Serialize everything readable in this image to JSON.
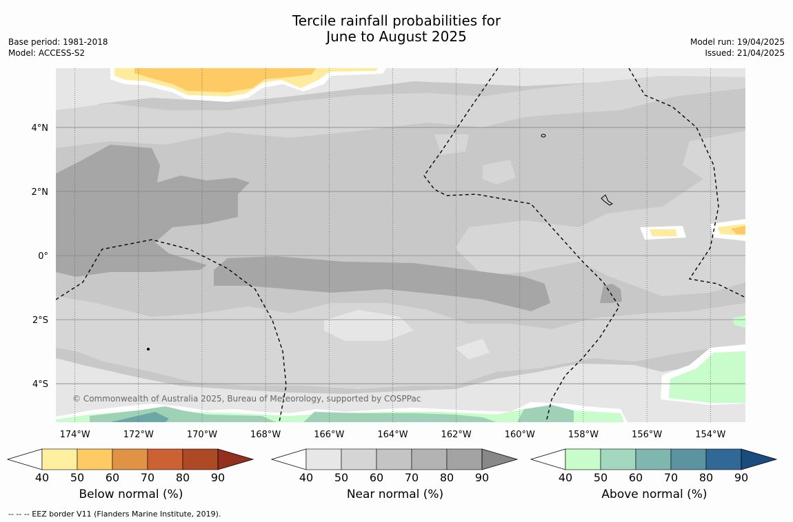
{
  "title": {
    "line1": "Tercile rainfall probabilities for",
    "line2": "June to August 2025"
  },
  "meta_left": {
    "base_period": "Base period: 1981-2018",
    "model": "Model: ACCESS-S2"
  },
  "meta_right": {
    "model_run": "Model run: 19/04/2025",
    "issued": "Issued: 21/04/2025"
  },
  "map": {
    "lon_range": [
      -174.6,
      -152.9
    ],
    "lat_range": [
      -5.2,
      5.85
    ],
    "lon_ticks": [
      "174°W",
      "172°W",
      "170°W",
      "168°W",
      "166°W",
      "164°W",
      "162°W",
      "160°W",
      "158°W",
      "156°W",
      "154°W"
    ],
    "lat_ticks": [
      "4°N",
      "2°N",
      "0°",
      "2°S",
      "4°S"
    ],
    "copyright": "© Commonwealth of Australia 2025, Bureau of Meteorology, supported by COSPPac",
    "colors": {
      "background": "#c8c8c8",
      "near_40": "#e6e6e6",
      "near_50": "#d6d6d6",
      "near_60": "#c6c6c6",
      "near_70": "#a6a6a6",
      "below_40": "#ffeb9e",
      "below_50": "#fdca64",
      "above_40": "#c8fcca",
      "above_50": "#9fd1b6",
      "above_60": "#6ba7a5"
    }
  },
  "colorbars": [
    {
      "label": "Below normal (%)",
      "ticks": [
        "40",
        "50",
        "60",
        "70",
        "80",
        "90"
      ],
      "colors": [
        "#fff0a0",
        "#fdca64",
        "#e19345",
        "#cc6133",
        "#ae4926",
        "#93301e"
      ]
    },
    {
      "label": "Near normal (%)",
      "ticks": [
        "40",
        "50",
        "60",
        "70",
        "80",
        "90"
      ],
      "colors": [
        "#e7e7e7",
        "#d5d5d5",
        "#c4c4c4",
        "#b3b3b3",
        "#a3a3a3",
        "#888888"
      ]
    },
    {
      "label": "Above normal (%)",
      "ticks": [
        "40",
        "50",
        "60",
        "70",
        "80",
        "90"
      ],
      "colors": [
        "#c8fcca",
        "#a4d8be",
        "#80b6b0",
        "#5b93a0",
        "#326895",
        "#1b4c7e"
      ]
    }
  ],
  "footer": "-- -- -- EEZ border V11 (Flanders Marine Institute, 2019)."
}
